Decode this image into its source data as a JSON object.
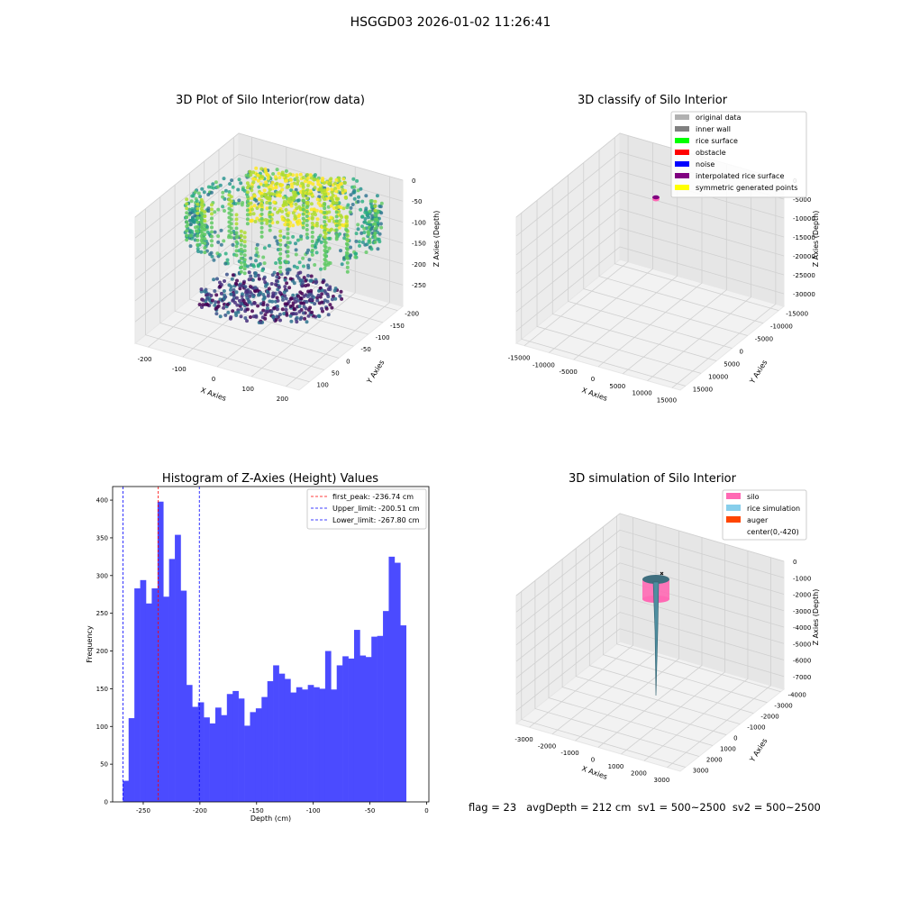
{
  "figure": {
    "suptitle": "HSGGD03 2026-01-02 11:26:41",
    "footer": "flag = 23   avgDepth = 212 cm  sv1 = 500~2500  sv2 = 500~2500"
  },
  "chart_data": [
    {
      "type": "scatter",
      "projection": "3d",
      "title": "3D Plot of Silo Interior(row data)",
      "xlabel": "X Axies",
      "ylabel": "Y Axies",
      "zlabel": "Z Axies (Depth)",
      "x_ticks": [
        "-200",
        "-100",
        "0",
        "100",
        "200"
      ],
      "y_ticks": [
        "-200",
        "-150",
        "-100",
        "-50",
        "0",
        "50",
        "100"
      ],
      "z_ticks": [
        "0",
        "-50",
        "-100",
        "-150",
        "-200",
        "-250"
      ],
      "colormap": "viridis",
      "grid": true
    },
    {
      "type": "scatter",
      "projection": "3d",
      "title": "3D classify of Silo Interior",
      "xlabel": "X Axies",
      "ylabel": "Y Axies",
      "zlabel": "Z Axies (Depth)",
      "x_ticks": [
        "-15000",
        "-10000",
        "-5000",
        "0",
        "5000",
        "10000",
        "15000"
      ],
      "y_ticks": [
        "-15000",
        "-10000",
        "-5000",
        "0",
        "5000",
        "10000",
        "15000"
      ],
      "z_ticks": [
        "0",
        "-5000",
        "-10000",
        "-15000",
        "-20000",
        "-25000",
        "-30000"
      ],
      "legend_position": "top-right",
      "legend": [
        {
          "label": "original data",
          "color": "#b0b0b0"
        },
        {
          "label": "inner wall",
          "color": "#808080"
        },
        {
          "label": "rice surface",
          "color": "#00ff00"
        },
        {
          "label": "obstacle",
          "color": "#ff0000"
        },
        {
          "label": "noise",
          "color": "#0000ff"
        },
        {
          "label": "interpolated rice surface",
          "color": "#800080"
        },
        {
          "label": "symmetric generated points",
          "color": "#ffff00"
        }
      ],
      "grid": true
    },
    {
      "type": "bar",
      "title": "Histogram of Z-Axies (Height) Values",
      "xlabel": "Depth (cm)",
      "ylabel": "Frequency",
      "xlim": [
        -277,
        2
      ],
      "ylim": [
        0,
        418
      ],
      "x_ticks": [
        -250,
        -200,
        -150,
        -100,
        -50,
        0
      ],
      "y_ticks": [
        0,
        50,
        100,
        150,
        200,
        250,
        300,
        350,
        400
      ],
      "bin_start": -268,
      "bin_width": 5.1,
      "color": "#4b4bff",
      "values": [
        28,
        111,
        283,
        294,
        263,
        283,
        398,
        272,
        322,
        354,
        280,
        155,
        126,
        132,
        112,
        104,
        125,
        115,
        143,
        147,
        137,
        101,
        119,
        124,
        139,
        160,
        181,
        170,
        163,
        145,
        152,
        149,
        155,
        152,
        150,
        200,
        149,
        181,
        193,
        190,
        228,
        194,
        192,
        219,
        220,
        253,
        325,
        317,
        234
      ],
      "vlines": [
        {
          "label": "first_peak: -236.74 cm",
          "x": -236.74,
          "color": "#ff0000"
        },
        {
          "label": "Upper_limit: -200.51 cm",
          "x": -200.51,
          "color": "#0000ff"
        },
        {
          "label": "Lower_limit: -267.80 cm",
          "x": -267.8,
          "color": "#0000ff"
        }
      ],
      "legend_position": "top-right"
    },
    {
      "type": "surface",
      "projection": "3d",
      "title": "3D simulation of Silo Interior",
      "xlabel": "X Axies",
      "ylabel": "Y Axies",
      "zlabel": "Z Axies (Depth)",
      "x_ticks": [
        "-3000",
        "-2000",
        "-1000",
        "0",
        "1000",
        "2000",
        "3000"
      ],
      "y_ticks": [
        "-4000",
        "-3000",
        "-2000",
        "-1000",
        "0",
        "1000",
        "2000",
        "3000"
      ],
      "z_ticks": [
        "0",
        "-1000",
        "-2000",
        "-3000",
        "-4000",
        "-5000",
        "-6000",
        "-7000"
      ],
      "legend_position": "top-right",
      "legend": [
        {
          "label": "silo",
          "color": "#ff69b4"
        },
        {
          "label": "rice simulation",
          "color": "#87ceeb"
        },
        {
          "label": "auger",
          "color": "#ff4500"
        },
        {
          "label": "center(0,-420)",
          "color": "#000000"
        }
      ],
      "grid": true
    }
  ]
}
